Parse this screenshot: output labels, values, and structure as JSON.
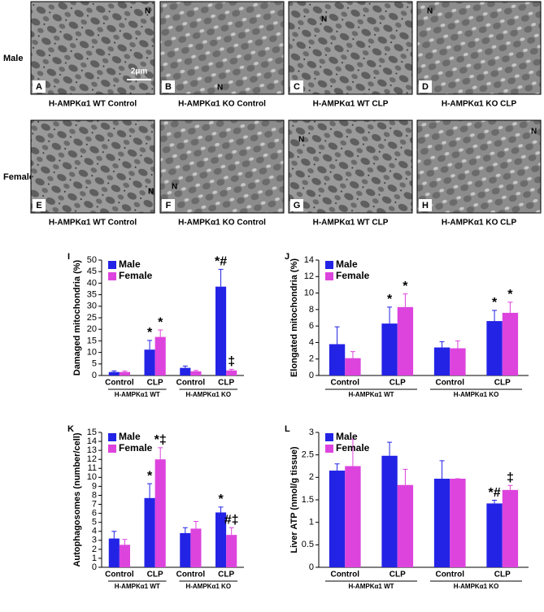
{
  "figure": {
    "row_labels": [
      "Male",
      "Female"
    ],
    "scale_bar": "2μm",
    "micrographs": [
      {
        "letter": "A",
        "caption": "H-AMPKα1 WT Control",
        "markers": [
          "N"
        ]
      },
      {
        "letter": "B",
        "caption": "H-AMPKα1 KO Control",
        "markers": [
          "N"
        ]
      },
      {
        "letter": "C",
        "caption": "H-AMPKα1 WT CLP",
        "markers": [
          "N"
        ]
      },
      {
        "letter": "D",
        "caption": "H-AMPKα1 KO CLP",
        "markers": [
          "N"
        ]
      },
      {
        "letter": "E",
        "caption": "H-AMPKα1 WT Control",
        "markers": [
          "N"
        ]
      },
      {
        "letter": "F",
        "caption": "H-AMPKα1 KO Control",
        "markers": [
          "N"
        ]
      },
      {
        "letter": "G",
        "caption": "H-AMPKα1 WT CLP",
        "markers": [
          "N"
        ]
      },
      {
        "letter": "H",
        "caption": "H-AMPKα1 KO CLP",
        "markers": [
          "N"
        ]
      }
    ]
  },
  "chart_data": [
    {
      "type": "bar",
      "panel": "I",
      "y_label": "Damaged mitochondria (%)",
      "categories": [
        "Control",
        "CLP",
        "Control",
        "CLP"
      ],
      "groups": [
        "H-AMPKα1 WT",
        "H-AMPKα1 KO"
      ],
      "ylim": [
        0,
        50
      ],
      "yticks": [
        0,
        5,
        10,
        15,
        20,
        25,
        30,
        35,
        40,
        45,
        50
      ],
      "series": [
        {
          "name": "Male",
          "color": "#2323e6",
          "values": [
            1.5,
            11.2,
            3.3,
            38.5
          ],
          "errors": [
            0.5,
            4,
            0.8,
            7.5
          ],
          "annotations": [
            null,
            "*",
            null,
            "*#"
          ]
        },
        {
          "name": "Female",
          "color": "#dd44dd",
          "values": [
            1.5,
            16.7,
            1.8,
            2.2
          ],
          "errors": [
            0.4,
            3,
            0.4,
            0.5
          ],
          "annotations": [
            null,
            "*",
            null,
            "‡"
          ]
        }
      ]
    },
    {
      "type": "bar",
      "panel": "J",
      "y_label": "Elongated mitochondria (%)",
      "categories": [
        "Control",
        "CLP",
        "Control",
        "CLP"
      ],
      "groups": [
        "H-AMPKα1 WT",
        "H-AMPKα1 KO"
      ],
      "ylim": [
        0,
        14
      ],
      "yticks": [
        0,
        2,
        4,
        6,
        8,
        10,
        12,
        14
      ],
      "series": [
        {
          "name": "Male",
          "color": "#2323e6",
          "values": [
            3.8,
            6.3,
            3.4,
            6.6
          ],
          "errors": [
            2.1,
            2,
            0.7,
            1.3
          ],
          "annotations": [
            null,
            "*",
            null,
            "*"
          ]
        },
        {
          "name": "Female",
          "color": "#dd44dd",
          "values": [
            2.1,
            8.3,
            3.3,
            7.6
          ],
          "errors": [
            0.8,
            1.6,
            0.9,
            1.3
          ],
          "annotations": [
            null,
            "*",
            null,
            "*"
          ]
        }
      ]
    },
    {
      "type": "bar",
      "panel": "K",
      "y_label": "Autophagosomes (number/cell)",
      "categories": [
        "Control",
        "CLP",
        "Control",
        "CLP"
      ],
      "groups": [
        "H-AMPKα1 WT",
        "H-AMPKα1 KO"
      ],
      "ylim": [
        0,
        15
      ],
      "yticks": [
        0,
        1,
        2,
        3,
        4,
        5,
        6,
        7,
        8,
        9,
        10,
        11,
        12,
        13,
        14,
        15
      ],
      "series": [
        {
          "name": "Male",
          "color": "#2323e6",
          "values": [
            3.2,
            7.7,
            3.8,
            6.1
          ],
          "errors": [
            0.8,
            1.6,
            0.6,
            0.6
          ],
          "annotations": [
            null,
            "*",
            null,
            "*"
          ]
        },
        {
          "name": "Female",
          "color": "#dd44dd",
          "values": [
            2.5,
            12,
            4.3,
            3.6
          ],
          "errors": [
            0.6,
            1.3,
            0.8,
            0.8
          ],
          "annotations": [
            null,
            "*‡",
            null,
            "#‡"
          ]
        }
      ]
    },
    {
      "type": "bar",
      "panel": "L",
      "y_label": "Liver ATP (nmol/g tissue)",
      "categories": [
        "Control",
        "CLP",
        "Control",
        "CLP"
      ],
      "groups": [
        "H-AMPKα1 WT",
        "H-AMPKα1 KO"
      ],
      "ylim": [
        0,
        3
      ],
      "yticks": [
        0,
        0.5,
        1,
        1.5,
        2,
        2.5,
        3
      ],
      "series": [
        {
          "name": "Male",
          "color": "#2323e6",
          "values": [
            2.15,
            2.48,
            1.97,
            1.42
          ],
          "errors": [
            0.15,
            0.3,
            0.4,
            0.07
          ],
          "annotations": [
            null,
            null,
            null,
            "*#"
          ]
        },
        {
          "name": "Female",
          "color": "#dd44dd",
          "values": [
            2.25,
            1.83,
            1.97,
            1.72
          ],
          "errors": [
            0.6,
            0.35,
            0,
            0.1
          ],
          "annotations": [
            null,
            null,
            null,
            "‡"
          ]
        }
      ]
    }
  ]
}
